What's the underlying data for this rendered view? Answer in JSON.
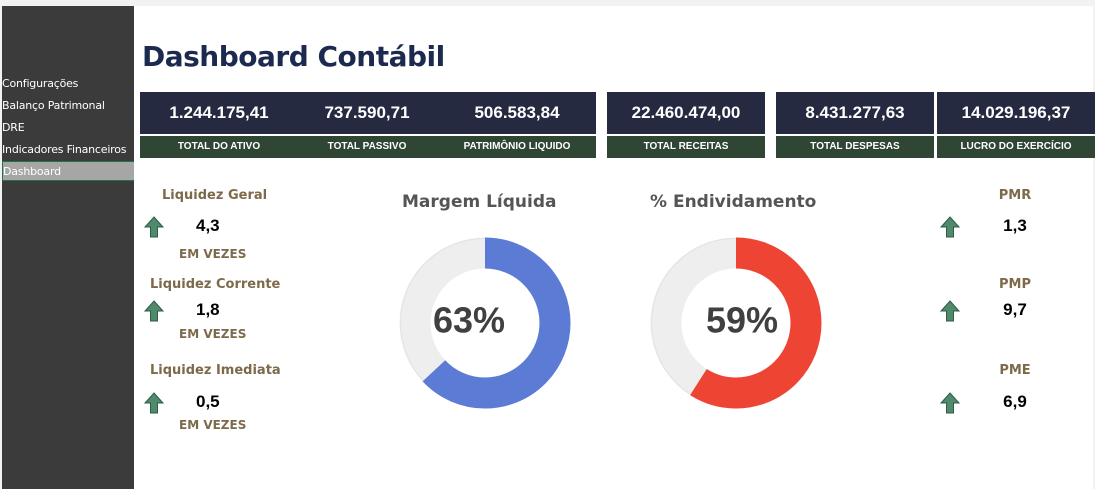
{
  "sidebar": {
    "items": [
      {
        "label": "Configurações"
      },
      {
        "label": "Balanço Patrimonal"
      },
      {
        "label": "DRE"
      },
      {
        "label": "Indicadores Financeiros"
      },
      {
        "label": "Dashboard",
        "active": true
      }
    ]
  },
  "header": {
    "title": "Dashboard Contábil"
  },
  "kpis": [
    {
      "value": "1.244.175,41",
      "label": "TOTAL DO ATIVO"
    },
    {
      "value": "737.590,71",
      "label": "TOTAL PASSIVO"
    },
    {
      "value": "506.583,84",
      "label": "PATRIMÔNIO LIQUIDO"
    },
    {
      "value": "22.460.474,00",
      "label": "TOTAL RECEITAS"
    },
    {
      "value": "8.431.277,63",
      "label": "TOTAL DESPESAS"
    },
    {
      "value": "14.029.196,37",
      "label": "LUCRO DO EXERCÍCIO"
    }
  ],
  "liquidity": [
    {
      "label": "Liquidez Geral",
      "value": "4,3",
      "unit": "EM VEZES"
    },
    {
      "label": "Liquidez Corrente",
      "value": "1,8",
      "unit": "EM VEZES"
    },
    {
      "label": "Liquidez Imediata",
      "value": "0,5",
      "unit": "EM VEZES"
    }
  ],
  "terms": [
    {
      "label": "PMR",
      "value": "1,3"
    },
    {
      "label": "PMP",
      "value": "9,7"
    },
    {
      "label": "PME",
      "value": "6,9"
    }
  ],
  "charts": [
    {
      "title": "Margem Líquida",
      "value_label": "63%",
      "fraction": 0.63,
      "color": "#5b7bd5"
    },
    {
      "title": "% Endividamento",
      "value_label": "59%",
      "fraction": 0.59,
      "color": "#ee4433"
    }
  ],
  "colors": {
    "kpi_value_bg": "#252a40",
    "kpi_label_bg": "#2e4633",
    "arrow": "#4e8a6b",
    "title": "#1b2a4e"
  },
  "icons": {
    "arrow": "arrow-up-icon"
  }
}
